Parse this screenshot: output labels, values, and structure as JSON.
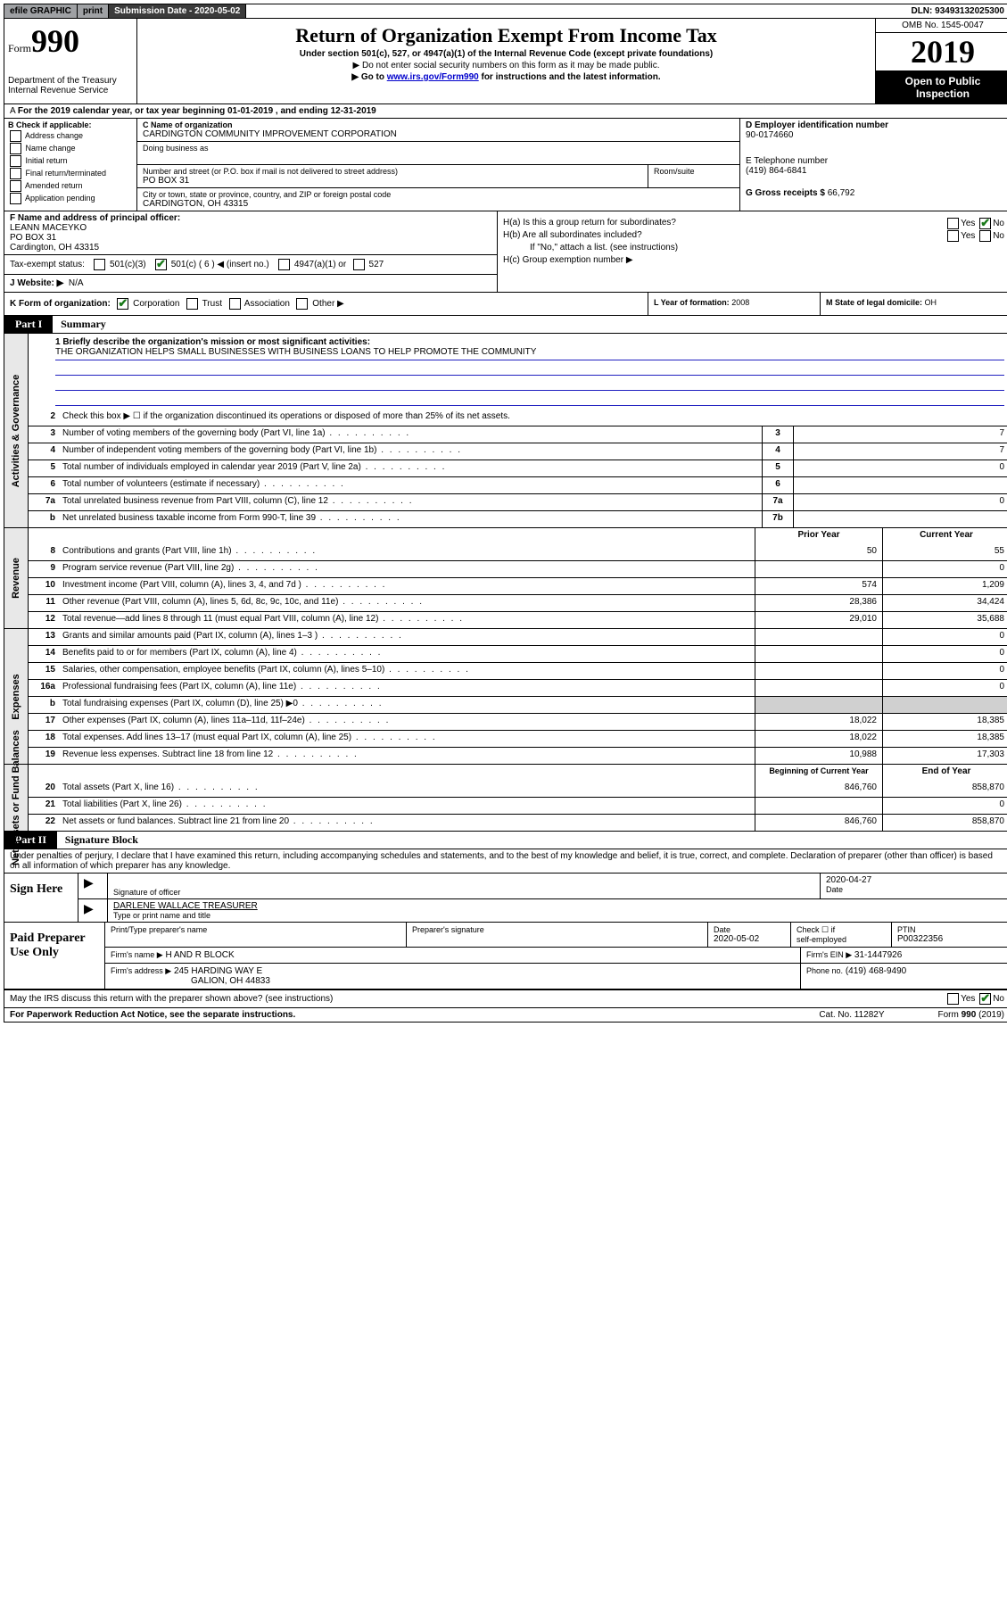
{
  "topbar": {
    "efile": "efile GRAPHIC",
    "print": "print",
    "subdate_label": "Submission Date - 2020-05-02",
    "dln": "DLN: 93493132025300"
  },
  "header": {
    "form_prefix": "Form",
    "form_num": "990",
    "dept": "Department of the Treasury",
    "irs": "Internal Revenue Service",
    "title": "Return of Organization Exempt From Income Tax",
    "sub": "Under section 501(c), 527, or 4947(a)(1) of the Internal Revenue Code (except private foundations)",
    "note1": "▶ Do not enter social security numbers on this form as it may be made public.",
    "note2_pre": "▶ Go to ",
    "note2_link": "www.irs.gov/Form990",
    "note2_post": " for instructions and the latest information.",
    "omb": "OMB No. 1545-0047",
    "year": "2019",
    "inspect1": "Open to Public",
    "inspect2": "Inspection"
  },
  "period": "For the 2019 calendar year, or tax year beginning 01-01-2019   , and ending 12-31-2019",
  "boxB": {
    "label": "B Check if applicable:",
    "opts": [
      "Address change",
      "Name change",
      "Initial return",
      "Final return/terminated",
      "Amended return",
      "Application pending"
    ]
  },
  "boxC": {
    "name_label": "C Name of organization",
    "name": "CARDINGTON COMMUNITY IMPROVEMENT CORPORATION",
    "dba_label": "Doing business as",
    "addr_label": "Number and street (or P.O. box if mail is not delivered to street address)",
    "room_label": "Room/suite",
    "addr": "PO BOX 31",
    "city_label": "City or town, state or province, country, and ZIP or foreign postal code",
    "city": "CARDINGTON, OH  43315"
  },
  "boxD": {
    "label": "D Employer identification number",
    "val": "90-0174660"
  },
  "boxE": {
    "label": "E Telephone number",
    "val": "(419) 864-6841"
  },
  "boxG": {
    "label": "G Gross receipts $",
    "val": "66,792"
  },
  "boxF": {
    "label": "F  Name and address of principal officer:",
    "name": "LEANN MACEYKO",
    "addr1": "PO BOX 31",
    "addr2": "Cardington, OH  43315"
  },
  "boxH": {
    "a": "H(a)  Is this a group return for subordinates?",
    "b": "H(b)  Are all subordinates included?",
    "bnote": "If \"No,\" attach a list. (see instructions)",
    "c": "H(c)  Group exemption number ▶"
  },
  "tax": {
    "label": "Tax-exempt status:",
    "c3": "501(c)(3)",
    "c": "501(c) ( 6 ) ◀ (insert no.)",
    "a4947": "4947(a)(1) or",
    "s527": "527"
  },
  "boxJ": {
    "label": "J   Website: ▶",
    "val": "N/A"
  },
  "boxK": {
    "label": "K Form of organization:",
    "opts": [
      "Corporation",
      "Trust",
      "Association",
      "Other ▶"
    ]
  },
  "boxL": {
    "label": "L Year of formation:",
    "val": "2008"
  },
  "boxM": {
    "label": "M State of legal domicile:",
    "val": "OH"
  },
  "part1": {
    "hdr": "Part I",
    "title": "Summary"
  },
  "mission": {
    "q": "1   Briefly describe the organization's mission or most significant activities:",
    "text": "THE ORGANIZATION HELPS SMALL BUSINESSES WITH BUSINESS LOANS TO HELP PROMOTE THE COMMUNITY"
  },
  "lines_gov": [
    {
      "n": "2",
      "d": "Check this box ▶ ☐  if the organization discontinued its operations or disposed of more than 25% of its net assets."
    },
    {
      "n": "3",
      "d": "Number of voting members of the governing body (Part VI, line 1a)",
      "box": "3",
      "v": "7"
    },
    {
      "n": "4",
      "d": "Number of independent voting members of the governing body (Part VI, line 1b)",
      "box": "4",
      "v": "7"
    },
    {
      "n": "5",
      "d": "Total number of individuals employed in calendar year 2019 (Part V, line 2a)",
      "box": "5",
      "v": "0"
    },
    {
      "n": "6",
      "d": "Total number of volunteers (estimate if necessary)",
      "box": "6",
      "v": ""
    },
    {
      "n": "7a",
      "d": "Total unrelated business revenue from Part VIII, column (C), line 12",
      "box": "7a",
      "v": "0"
    },
    {
      "n": "b",
      "d": "Net unrelated business taxable income from Form 990-T, line 39",
      "box": "7b",
      "v": ""
    }
  ],
  "rev_hdr": {
    "prior": "Prior Year",
    "curr": "Current Year"
  },
  "lines_rev": [
    {
      "n": "8",
      "d": "Contributions and grants (Part VIII, line 1h)",
      "p": "50",
      "c": "55"
    },
    {
      "n": "9",
      "d": "Program service revenue (Part VIII, line 2g)",
      "p": "",
      "c": "0"
    },
    {
      "n": "10",
      "d": "Investment income (Part VIII, column (A), lines 3, 4, and 7d )",
      "p": "574",
      "c": "1,209"
    },
    {
      "n": "11",
      "d": "Other revenue (Part VIII, column (A), lines 5, 6d, 8c, 9c, 10c, and 11e)",
      "p": "28,386",
      "c": "34,424"
    },
    {
      "n": "12",
      "d": "Total revenue—add lines 8 through 11 (must equal Part VIII, column (A), line 12)",
      "p": "29,010",
      "c": "35,688"
    }
  ],
  "lines_exp": [
    {
      "n": "13",
      "d": "Grants and similar amounts paid (Part IX, column (A), lines 1–3 )",
      "p": "",
      "c": "0"
    },
    {
      "n": "14",
      "d": "Benefits paid to or for members (Part IX, column (A), line 4)",
      "p": "",
      "c": "0"
    },
    {
      "n": "15",
      "d": "Salaries, other compensation, employee benefits (Part IX, column (A), lines 5–10)",
      "p": "",
      "c": "0"
    },
    {
      "n": "16a",
      "d": "Professional fundraising fees (Part IX, column (A), line 11e)",
      "p": "",
      "c": "0"
    },
    {
      "n": "b",
      "d": "Total fundraising expenses (Part IX, column (D), line 25) ▶0",
      "p": "GREY",
      "c": "GREY"
    },
    {
      "n": "17",
      "d": "Other expenses (Part IX, column (A), lines 11a–11d, 11f–24e)",
      "p": "18,022",
      "c": "18,385"
    },
    {
      "n": "18",
      "d": "Total expenses. Add lines 13–17 (must equal Part IX, column (A), line 25)",
      "p": "18,022",
      "c": "18,385"
    },
    {
      "n": "19",
      "d": "Revenue less expenses. Subtract line 18 from line 12",
      "p": "10,988",
      "c": "17,303"
    }
  ],
  "na_hdr": {
    "prior": "Beginning of Current Year",
    "curr": "End of Year"
  },
  "lines_na": [
    {
      "n": "20",
      "d": "Total assets (Part X, line 16)",
      "p": "846,760",
      "c": "858,870"
    },
    {
      "n": "21",
      "d": "Total liabilities (Part X, line 26)",
      "p": "",
      "c": "0"
    },
    {
      "n": "22",
      "d": "Net assets or fund balances. Subtract line 21 from line 20",
      "p": "846,760",
      "c": "858,870"
    }
  ],
  "tabs": {
    "gov": "Activities & Governance",
    "rev": "Revenue",
    "exp": "Expenses",
    "na": "Net Assets or Fund Balances"
  },
  "part2": {
    "hdr": "Part II",
    "title": "Signature Block"
  },
  "penalty": "Under penalties of perjury, I declare that I have examined this return, including accompanying schedules and statements, and to the best of my knowledge and belief, it is true, correct, and complete. Declaration of preparer (other than officer) is based on all information of which preparer has any knowledge.",
  "sign": {
    "here": "Sign Here",
    "sig_label": "Signature of officer",
    "date": "2020-04-27",
    "date_label": "Date",
    "name": "DARLENE WALLACE  TREASURER",
    "name_label": "Type or print name and title"
  },
  "prep": {
    "title": "Paid Preparer Use Only",
    "h1": "Print/Type preparer's name",
    "h2": "Preparer's signature",
    "h3": "Date",
    "date": "2020-05-02",
    "h4pre": "Check ☐ if",
    "h4": "self-employed",
    "h5": "PTIN",
    "ptin": "P00322356",
    "firm_label": "Firm's name    ▶",
    "firm": "H AND R BLOCK",
    "ein_label": "Firm's EIN ▶",
    "ein": "31-1447926",
    "addr_label": "Firm's address ▶",
    "addr1": "245 HARDING WAY E",
    "addr2": "GALION, OH   44833",
    "phone_label": "Phone no.",
    "phone": "(419) 468-9490"
  },
  "discuss": "May the IRS discuss this return with the preparer shown above? (see instructions)",
  "footer": {
    "left": "For Paperwork Reduction Act Notice, see the separate instructions.",
    "mid": "Cat. No. 11282Y",
    "right": "Form 990 (2019)"
  },
  "yn": {
    "yes": "Yes",
    "no": "No"
  }
}
